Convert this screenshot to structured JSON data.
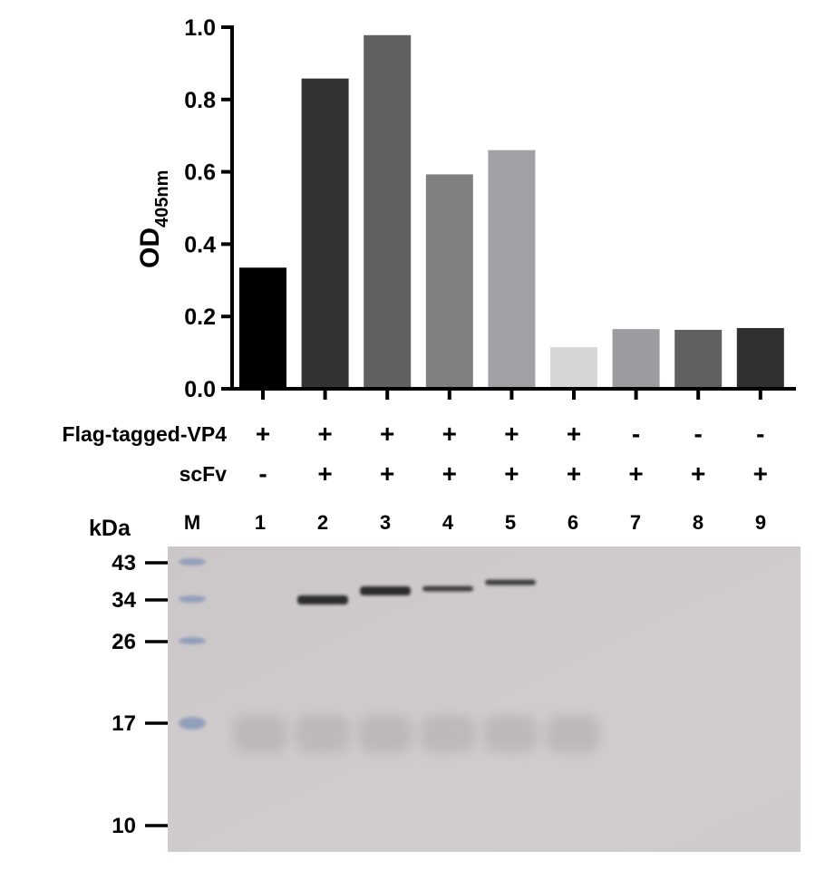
{
  "chart_data": {
    "type": "bar",
    "ylabel_main": "OD",
    "ylabel_sub": "405nm",
    "ylim": [
      0,
      1.0
    ],
    "yticks": [
      0.0,
      0.2,
      0.4,
      0.6,
      0.8,
      1.0
    ],
    "ytick_labels": [
      "0.0",
      "0.2",
      "0.4",
      "0.6",
      "0.8",
      "1.0"
    ],
    "categories": [
      "1",
      "2",
      "3",
      "4",
      "5",
      "6",
      "7",
      "8",
      "9"
    ],
    "values": [
      0.335,
      0.858,
      0.978,
      0.593,
      0.66,
      0.115,
      0.165,
      0.163,
      0.168
    ],
    "bar_colors": [
      "#000000",
      "#333333",
      "#616161",
      "#808080",
      "#a0a0a5",
      "#d6d6d6",
      "#9b9ba0",
      "#606060",
      "#303030"
    ]
  },
  "conditions": [
    {
      "label": "Flag-tagged-VP4",
      "values": [
        "+",
        "+",
        "+",
        "+",
        "+",
        "+",
        "-",
        "-",
        "-"
      ]
    },
    {
      "label": "scFv",
      "values": [
        "-",
        "+",
        "+",
        "+",
        "+",
        "+",
        "+",
        "+",
        "+"
      ]
    }
  ],
  "gel": {
    "unit_label": "kDa",
    "marker_lane_label": "M",
    "lane_labels": [
      "1",
      "2",
      "3",
      "4",
      "5",
      "6",
      "7",
      "8",
      "9"
    ],
    "markers": [
      {
        "label": "43",
        "kda": 43
      },
      {
        "label": "34",
        "kda": 34
      },
      {
        "label": "26",
        "kda": 26
      },
      {
        "label": "17",
        "kda": 17
      },
      {
        "label": "10",
        "kda": 10
      }
    ],
    "bands": [
      {
        "lane": "2",
        "kda": 34,
        "intensity": "strong"
      },
      {
        "lane": "3",
        "kda": 36,
        "intensity": "strong"
      },
      {
        "lane": "4",
        "kda": 36.5,
        "intensity": "medium"
      },
      {
        "lane": "5",
        "kda": 38,
        "intensity": "medium"
      }
    ],
    "diffuse_bands_kda": 16,
    "diffuse_lanes": [
      "1",
      "2",
      "3",
      "4",
      "5",
      "6"
    ],
    "colors": {
      "gel_bg": "#cdc8c9",
      "band": "#1a1a1f",
      "ladder": "#7a8fb5"
    }
  }
}
